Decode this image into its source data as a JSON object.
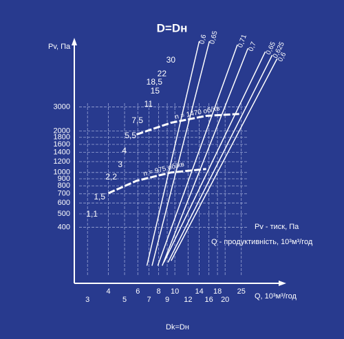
{
  "chart_data": {
    "type": "line",
    "title": "D=Dн",
    "y_label": "Pv, Па",
    "x_label": "Q, 10³м³/год",
    "legend_lines": [
      "Pv - тиск, Па",
      "Q - продуктивність, 10³м³/год"
    ],
    "footer": "Dk=Dн",
    "log_scale": true,
    "grid": true,
    "xlim": [
      2.5,
      46
    ],
    "ylim": [
      160,
      9000
    ],
    "xticks": [
      3,
      4,
      5,
      6,
      7,
      8,
      9,
      10,
      12,
      14,
      16,
      18,
      20,
      25
    ],
    "yticks": [
      400,
      500,
      600,
      700,
      800,
      900,
      1000,
      1200,
      1400,
      1600,
      1800,
      2000,
      3000
    ],
    "power_labels": [
      "1,1",
      "1,5",
      "2,2",
      "3",
      "4",
      "5,5",
      "7,5",
      "11",
      "15",
      "18,5",
      "22",
      "30"
    ],
    "series": [
      {
        "name": "0,6",
        "color": "#ffffff",
        "x": [
          6.8,
          14
        ],
        "values": [
          210,
          9000
        ]
      },
      {
        "name": "0,65",
        "color": "#ffffff",
        "x": [
          7.3,
          16.1
        ],
        "values": [
          210,
          9000
        ]
      },
      {
        "name": "0,71",
        "color": "#ffffff",
        "x": [
          7.9,
          23.7
        ],
        "values": [
          210,
          8500
        ]
      },
      {
        "name": "0,7",
        "color": "#ffffff",
        "x": [
          8.4,
          27.4
        ],
        "values": [
          210,
          8000
        ]
      },
      {
        "name": "0,65",
        "color": "#ffffff",
        "x": [
          8.6,
          34.8
        ],
        "values": [
          222,
          7560
        ]
      },
      {
        "name": "0,625",
        "color": "#ffffff",
        "x": [
          9.1,
          38.3
        ],
        "values": [
          222,
          7140
        ]
      },
      {
        "name": "0,6",
        "color": "#ffffff",
        "x": [
          9.5,
          41
        ],
        "values": [
          228,
          6740
        ]
      },
      {
        "name": "n = 1470 об/хв",
        "color": "#ffffff",
        "x": [
          5.9,
          9.5,
          15.4,
          24.9
        ],
        "values": [
          1890,
          2300,
          2580,
          2670
        ]
      },
      {
        "name": "n = 975 об/хв",
        "color": "#ffffff",
        "x": [
          4,
          5.9,
          9.5,
          15.4
        ],
        "values": [
          707,
          870,
          1000,
          1060
        ]
      }
    ]
  }
}
